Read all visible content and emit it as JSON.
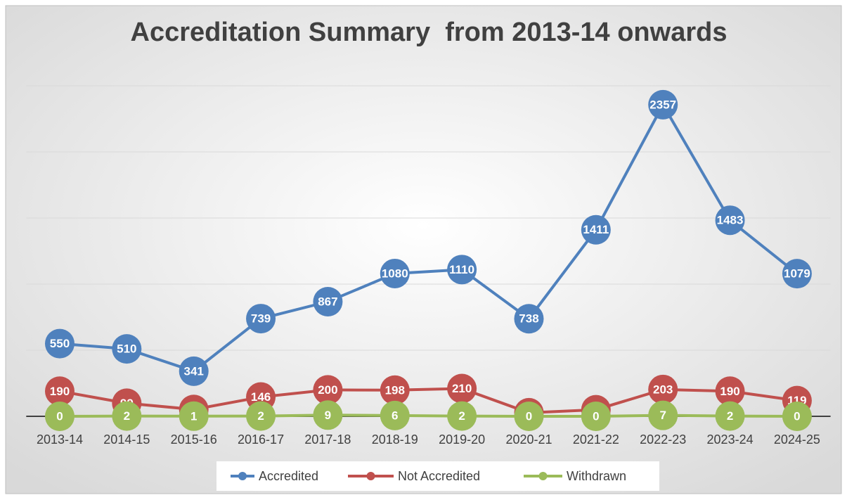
{
  "chart_data": {
    "type": "line",
    "title": "Accreditation Summary  from 2013-14 onwards",
    "categories": [
      "2013-14",
      "2014-15",
      "2015-16",
      "2016-17",
      "2017-18",
      "2018-19",
      "2019-20",
      "2020-21",
      "2021-22",
      "2022-23",
      "2023-24",
      "2024-25"
    ],
    "series": [
      {
        "name": "Accredited",
        "color": "#4f81bd",
        "values": [
          550,
          510,
          341,
          739,
          867,
          1080,
          1110,
          738,
          1411,
          2357,
          1483,
          1079
        ]
      },
      {
        "name": "Not Accredited",
        "color": "#c0504d",
        "values": [
          190,
          99,
          52,
          146,
          200,
          198,
          210,
          27,
          50,
          203,
          190,
          119
        ]
      },
      {
        "name": "Withdrawn",
        "color": "#9bbb59",
        "values": [
          0,
          2,
          1,
          2,
          9,
          6,
          2,
          0,
          0,
          7,
          2,
          0
        ]
      }
    ],
    "ylim": [
      0,
      2500
    ],
    "yticks": [
      0,
      500,
      1000,
      1500,
      2000,
      2500
    ],
    "grid": true,
    "legend": "bottom"
  }
}
